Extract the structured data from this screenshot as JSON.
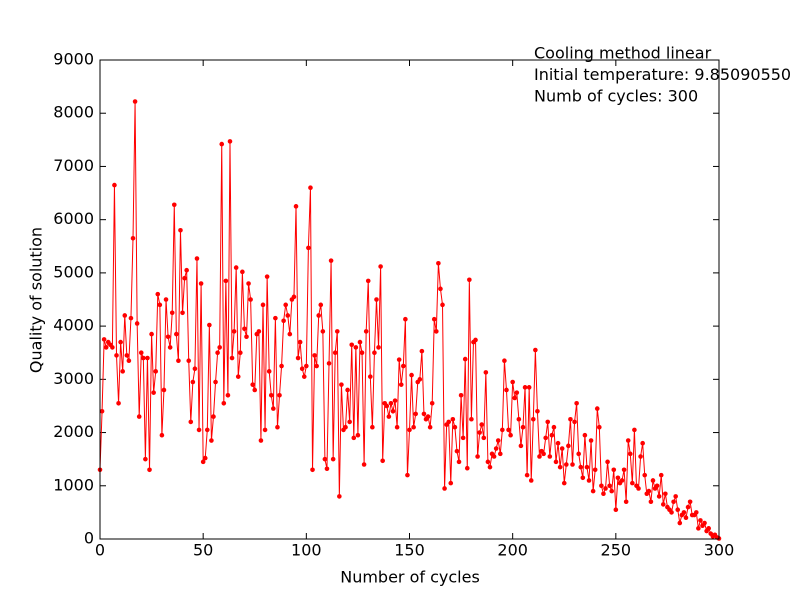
{
  "chart_data": {
    "type": "line",
    "annotations": [
      "Cooling method linear",
      "Initial temperature: 9.85090550",
      "Numb of cycles: 300"
    ],
    "xlabel": "Number of cycles",
    "ylabel": "Quality of solution",
    "xlim": [
      0,
      300
    ],
    "ylim": [
      0,
      9000
    ],
    "xticks": [
      0,
      50,
      100,
      150,
      200,
      250,
      300
    ],
    "yticks": [
      0,
      1000,
      2000,
      3000,
      4000,
      5000,
      6000,
      7000,
      8000,
      9000
    ],
    "series": [
      {
        "color": "#ff0000",
        "x": [
          0,
          1,
          2,
          3,
          4,
          5,
          6,
          7,
          8,
          9,
          10,
          11,
          12,
          13,
          14,
          15,
          16,
          17,
          18,
          19,
          20,
          21,
          22,
          23,
          24,
          25,
          26,
          27,
          28,
          29,
          30,
          31,
          32,
          33,
          34,
          35,
          36,
          37,
          38,
          39,
          40,
          41,
          42,
          43,
          44,
          45,
          46,
          47,
          48,
          49,
          50,
          51,
          52,
          53,
          54,
          55,
          56,
          57,
          58,
          59,
          60,
          61,
          62,
          63,
          64,
          65,
          66,
          67,
          68,
          69,
          70,
          71,
          72,
          73,
          74,
          75,
          76,
          77,
          78,
          79,
          80,
          81,
          82,
          83,
          84,
          85,
          86,
          87,
          88,
          89,
          90,
          91,
          92,
          93,
          94,
          95,
          96,
          97,
          98,
          99,
          100,
          101,
          102,
          103,
          104,
          105,
          106,
          107,
          108,
          109,
          110,
          111,
          112,
          113,
          114,
          115,
          116,
          117,
          118,
          119,
          120,
          121,
          122,
          123,
          124,
          125,
          126,
          127,
          128,
          129,
          130,
          131,
          132,
          133,
          134,
          135,
          136,
          137,
          138,
          139,
          140,
          141,
          142,
          143,
          144,
          145,
          146,
          147,
          148,
          149,
          150,
          151,
          152,
          153,
          154,
          155,
          156,
          157,
          158,
          159,
          160,
          161,
          162,
          163,
          164,
          165,
          166,
          167,
          168,
          169,
          170,
          171,
          172,
          173,
          174,
          175,
          176,
          177,
          178,
          179,
          180,
          181,
          182,
          183,
          184,
          185,
          186,
          187,
          188,
          189,
          190,
          191,
          192,
          193,
          194,
          195,
          196,
          197,
          198,
          199,
          200,
          201,
          202,
          203,
          204,
          205,
          206,
          207,
          208,
          209,
          210,
          211,
          212,
          213,
          214,
          215,
          216,
          217,
          218,
          219,
          220,
          221,
          222,
          223,
          224,
          225,
          226,
          227,
          228,
          229,
          230,
          231,
          232,
          233,
          234,
          235,
          236,
          237,
          238,
          239,
          240,
          241,
          242,
          243,
          244,
          245,
          246,
          247,
          248,
          249,
          250,
          251,
          252,
          253,
          254,
          255,
          256,
          257,
          258,
          259,
          260,
          261,
          262,
          263,
          264,
          265,
          266,
          267,
          268,
          269,
          270,
          271,
          272,
          273,
          274,
          275,
          276,
          277,
          278,
          279,
          280,
          281,
          282,
          283,
          284,
          285,
          286,
          287,
          288,
          289,
          290,
          291,
          292,
          293,
          294,
          295,
          296,
          297,
          298,
          299,
          300
        ],
        "values": [
          1300,
          2400,
          3750,
          3600,
          3700,
          3650,
          3600,
          6650,
          3450,
          2550,
          3700,
          3150,
          4200,
          3450,
          3350,
          4150,
          5650,
          8220,
          4050,
          2300,
          3500,
          3400,
          1500,
          3400,
          1300,
          3850,
          2750,
          3150,
          4600,
          4400,
          1950,
          2800,
          4500,
          3800,
          3600,
          4250,
          6280,
          3850,
          3350,
          5800,
          4250,
          4900,
          5050,
          3350,
          2200,
          2950,
          3200,
          5270,
          2050,
          4800,
          1450,
          1520,
          2050,
          4020,
          1850,
          2300,
          2950,
          3500,
          3600,
          7420,
          2550,
          4850,
          2700,
          7470,
          3400,
          3900,
          5100,
          3050,
          3500,
          5020,
          3950,
          3800,
          4800,
          4500,
          2900,
          2800,
          3850,
          3900,
          1850,
          4400,
          2050,
          4930,
          3150,
          2700,
          2450,
          4150,
          2100,
          2700,
          3250,
          4100,
          4400,
          4200,
          3850,
          4500,
          4550,
          6250,
          3400,
          3700,
          3200,
          3050,
          3250,
          5470,
          6600,
          1300,
          3450,
          3250,
          4200,
          4400,
          3900,
          1500,
          1320,
          3300,
          5230,
          1500,
          3500,
          3900,
          800,
          2900,
          2050,
          2100,
          2800,
          2200,
          3650,
          1900,
          3600,
          1950,
          3700,
          3500,
          1400,
          3900,
          4850,
          3050,
          2100,
          3500,
          4500,
          3600,
          5120,
          1470,
          2550,
          2500,
          2300,
          2550,
          2400,
          2600,
          2100,
          3370,
          2900,
          3250,
          4130,
          1200,
          2050,
          3080,
          2100,
          2350,
          2950,
          3000,
          3530,
          2350,
          2250,
          2300,
          2100,
          2550,
          4130,
          3900,
          5180,
          4700,
          4400,
          950,
          2150,
          2200,
          1050,
          2250,
          2100,
          1650,
          1450,
          2700,
          1900,
          3380,
          1330,
          4870,
          2250,
          3700,
          3740,
          1550,
          2000,
          2150,
          1900,
          3130,
          1450,
          1350,
          1600,
          1550,
          1700,
          1850,
          1600,
          2050,
          3350,
          2800,
          2050,
          1950,
          2950,
          2650,
          2750,
          2250,
          1750,
          2100,
          2850,
          1200,
          2850,
          1100,
          2250,
          3550,
          2400,
          1550,
          1650,
          1600,
          1900,
          2200,
          1550,
          1950,
          2100,
          1450,
          1800,
          1350,
          1700,
          1050,
          1400,
          1750,
          2250,
          1400,
          2200,
          2550,
          1600,
          1350,
          1150,
          1950,
          1350,
          1100,
          1850,
          900,
          1300,
          2450,
          2100,
          1000,
          850,
          950,
          1450,
          1000,
          900,
          1300,
          550,
          1150,
          1050,
          1100,
          1300,
          700,
          1850,
          1600,
          1050,
          2050,
          1000,
          950,
          1550,
          1800,
          1200,
          850,
          900,
          700,
          1100,
          950,
          1000,
          800,
          1200,
          650,
          850,
          600,
          550,
          500,
          700,
          800,
          550,
          300,
          450,
          500,
          400,
          600,
          700,
          450,
          450,
          500,
          200,
          350,
          250,
          300,
          150,
          200,
          100,
          50,
          80,
          30,
          10
        ]
      }
    ]
  }
}
